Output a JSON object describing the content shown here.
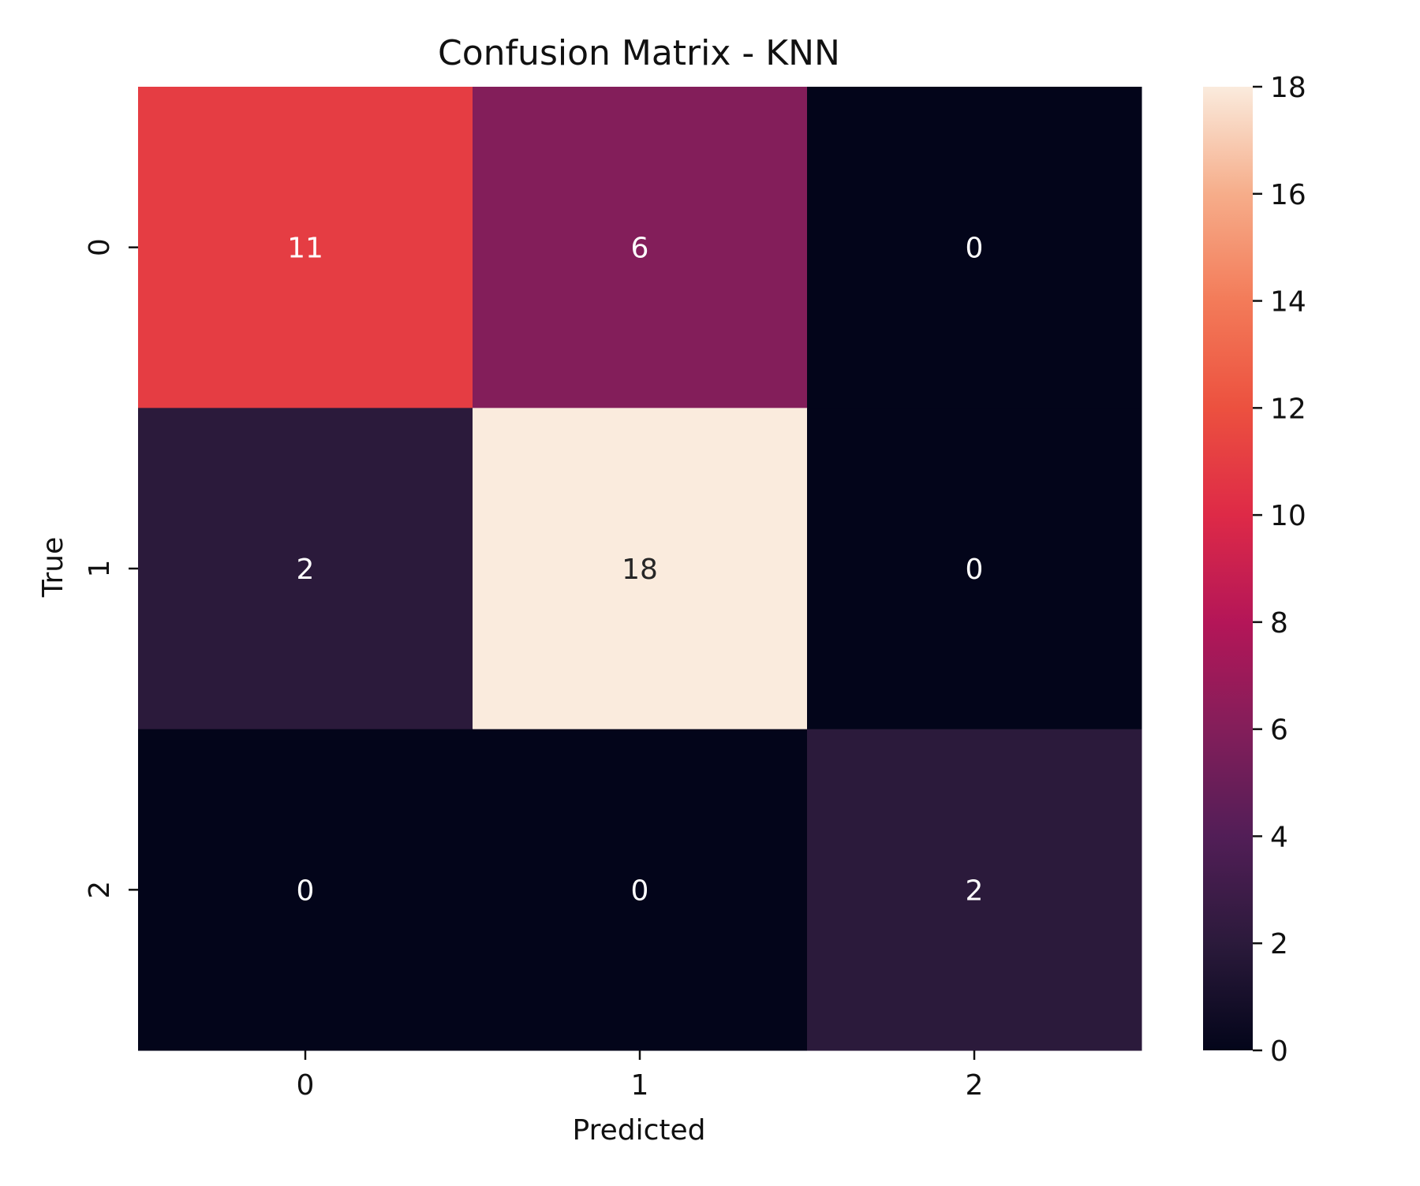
{
  "chart_data": {
    "type": "heatmap",
    "title": "Confusion Matrix - KNN",
    "xlabel": "Predicted",
    "ylabel": "True",
    "x_categories": [
      "0",
      "1",
      "2"
    ],
    "y_categories": [
      "0",
      "1",
      "2"
    ],
    "values": [
      [
        11,
        6,
        0
      ],
      [
        2,
        18,
        0
      ],
      [
        0,
        0,
        2
      ]
    ],
    "colormap": "rocket",
    "colorbar": {
      "range": [
        0,
        18
      ],
      "ticks": [
        0,
        2,
        4,
        6,
        8,
        10,
        12,
        14,
        16,
        18
      ]
    },
    "annotations": true,
    "grid": false
  }
}
